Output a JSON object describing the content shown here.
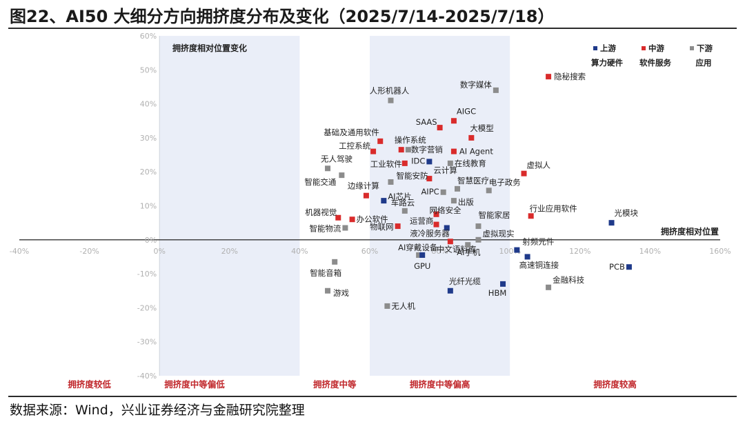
{
  "header": {
    "title": "图22、AI50 大细分方向拥挤度分布及变化（2025/7/14-2025/7/18）"
  },
  "footer": {
    "source": "数据来源：Wind，兴业证券经济与金融研究院整理"
  },
  "colors": {
    "upstream": "#1f3a8a",
    "midstream": "#d92b2b",
    "downstream": "#8c8c8c",
    "band": "#eaeef8",
    "zone_label": "#c0262a"
  },
  "chart_data": {
    "type": "scatter",
    "inner_title": "拥挤度相对位置变化",
    "xlabel": "拥挤度相对位置",
    "xlim": [
      -40,
      160
    ],
    "ylim": [
      -40,
      60
    ],
    "x_ticks": [
      "-40%",
      "-20%",
      "0%",
      "20%",
      "40%",
      "60%",
      "80%",
      "100%",
      "120%",
      "140%",
      "160%"
    ],
    "y_ticks": [
      "60%",
      "50%",
      "40%",
      "30%",
      "20%",
      "10%",
      "0%",
      "-10%",
      "-20%",
      "-30%",
      "-40%"
    ],
    "zones": [
      "拥挤度较低",
      "拥挤度中等偏低",
      "拥挤度中等",
      "拥挤度中等偏高",
      "拥挤度较高"
    ],
    "legend": [
      {
        "name": "上游",
        "sub": "算力硬件",
        "color": "#1f3a8a"
      },
      {
        "name": "中游",
        "sub": "软件服务",
        "color": "#d92b2b"
      },
      {
        "name": "下游",
        "sub": "应用",
        "color": "#8c8c8c"
      }
    ],
    "points": [
      {
        "label": "隐秘搜索",
        "x": 111,
        "y": 48,
        "group": "中游"
      },
      {
        "label": "数字媒体",
        "x": 96,
        "y": 44,
        "group": "下游"
      },
      {
        "label": "人形机器人",
        "x": 66,
        "y": 41,
        "group": "下游"
      },
      {
        "label": "AIGC",
        "x": 84,
        "y": 35,
        "group": "中游"
      },
      {
        "label": "SAAS",
        "x": 80,
        "y": 33,
        "group": "中游"
      },
      {
        "label": "大模型",
        "x": 89,
        "y": 30,
        "group": "中游"
      },
      {
        "label": "基础及通用软件",
        "x": 63,
        "y": 29,
        "group": "中游"
      },
      {
        "label": "工控系统",
        "x": 61,
        "y": 26,
        "group": "中游"
      },
      {
        "label": "操作系统",
        "x": 69,
        "y": 26.5,
        "group": "中游"
      },
      {
        "label": "数字营销",
        "x": 71,
        "y": 26.5,
        "group": "下游"
      },
      {
        "label": "AI Agent",
        "x": 84,
        "y": 26,
        "group": "中游"
      },
      {
        "label": "IDC",
        "x": 77,
        "y": 23,
        "group": "上游"
      },
      {
        "label": "工业软件",
        "x": 70,
        "y": 22.5,
        "group": "中游"
      },
      {
        "label": "在线教育",
        "x": 83,
        "y": 22.5,
        "group": "下游"
      },
      {
        "label": "无人驾驶",
        "x": 48,
        "y": 21,
        "group": "下游"
      },
      {
        "label": "虚拟人",
        "x": 104,
        "y": 19.5,
        "group": "中游"
      },
      {
        "label": "智能交通",
        "x": 52,
        "y": 19,
        "group": "下游"
      },
      {
        "label": "云计算",
        "x": 77,
        "y": 18,
        "group": "中游"
      },
      {
        "label": "智能安防",
        "x": 66,
        "y": 17,
        "group": "下游"
      },
      {
        "label": "智慧医疗",
        "x": 85,
        "y": 15,
        "group": "下游"
      },
      {
        "label": "电子政务",
        "x": 94,
        "y": 14.5,
        "group": "下游"
      },
      {
        "label": "AIPC",
        "x": 81,
        "y": 14,
        "group": "下游"
      },
      {
        "label": "边缘计算",
        "x": 59,
        "y": 13,
        "group": "中游"
      },
      {
        "label": "AI芯片",
        "x": 64,
        "y": 11.5,
        "group": "上游"
      },
      {
        "label": "出版",
        "x": 84,
        "y": 11.5,
        "group": "下游"
      },
      {
        "label": "车路云",
        "x": 70,
        "y": 8.5,
        "group": "下游"
      },
      {
        "label": "网络安全",
        "x": 79,
        "y": 7.5,
        "group": "中游"
      },
      {
        "label": "行业应用软件",
        "x": 106,
        "y": 7,
        "group": "中游"
      },
      {
        "label": "机器视觉",
        "x": 51,
        "y": 6.5,
        "group": "中游"
      },
      {
        "label": "办公软件",
        "x": 55,
        "y": 6,
        "group": "中游"
      },
      {
        "label": "光模块",
        "x": 129,
        "y": 5,
        "group": "上游"
      },
      {
        "label": "运营商",
        "x": 79,
        "y": 4.5,
        "group": "中游"
      },
      {
        "label": "智能家居",
        "x": 91,
        "y": 4,
        "group": "下游"
      },
      {
        "label": "物联网",
        "x": 68,
        "y": 4,
        "group": "中游"
      },
      {
        "label": "智能物流",
        "x": 53,
        "y": 3.5,
        "group": "下游"
      },
      {
        "label": "液冷服务器",
        "x": 82,
        "y": 3.5,
        "group": "上游"
      },
      {
        "label": "虚拟现实",
        "x": 91,
        "y": 0,
        "group": "下游"
      },
      {
        "label": "中文语料库",
        "x": 83,
        "y": -0.5,
        "group": "中游"
      },
      {
        "label": "AI手机",
        "x": 88,
        "y": -1.5,
        "group": "下游"
      },
      {
        "label": "射频元件",
        "x": 102,
        "y": -3,
        "group": "上游"
      },
      {
        "label": "高速铜连接",
        "x": 105,
        "y": -5,
        "group": "上游"
      },
      {
        "label": "AI穿戴设备",
        "x": 74,
        "y": -4.5,
        "group": "下游"
      },
      {
        "label": "GPU",
        "x": 75,
        "y": -4.5,
        "group": "上游"
      },
      {
        "label": "智能音箱",
        "x": 50,
        "y": -6.5,
        "group": "下游"
      },
      {
        "label": "PCB",
        "x": 134,
        "y": -8,
        "group": "上游"
      },
      {
        "label": "HBM",
        "x": 98,
        "y": -13,
        "group": "上游"
      },
      {
        "label": "金融科技",
        "x": 111,
        "y": -14,
        "group": "下游"
      },
      {
        "label": "光纤光缆",
        "x": 83,
        "y": -15,
        "group": "上游"
      },
      {
        "label": "游戏",
        "x": 48,
        "y": -15,
        "group": "下游"
      },
      {
        "label": "无人机",
        "x": 65,
        "y": -19.5,
        "group": "下游"
      }
    ]
  }
}
